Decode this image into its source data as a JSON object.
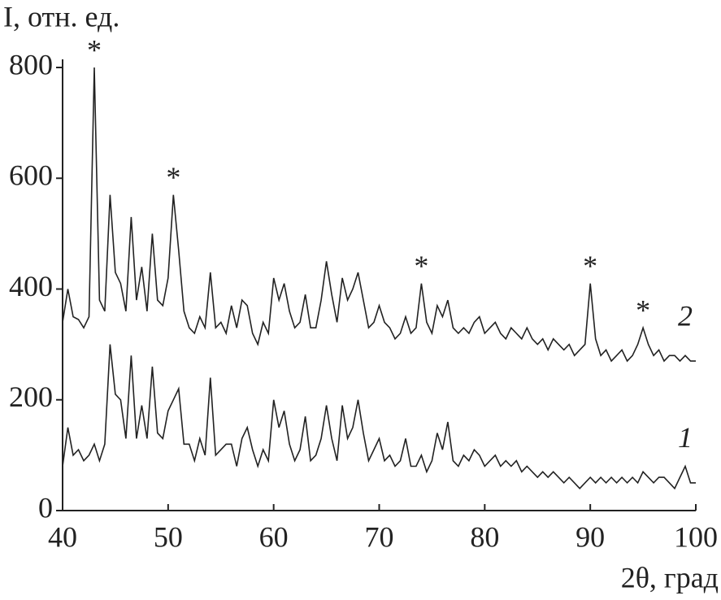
{
  "chart_data": {
    "type": "line",
    "y_label": "I, отн. ед.",
    "x_label": "2θ, град",
    "xlim": [
      40,
      100
    ],
    "xticks": [
      40,
      50,
      60,
      70,
      80,
      90,
      100
    ],
    "ylim": [
      0,
      800
    ],
    "yticks": [
      0,
      200,
      400,
      600,
      800
    ],
    "x": [
      40,
      40.5,
      41,
      41.5,
      42,
      42.5,
      43,
      43.5,
      44,
      44.5,
      45,
      45.5,
      46,
      46.5,
      47,
      47.5,
      48,
      48.5,
      49,
      49.5,
      50,
      50.5,
      51,
      51.5,
      52,
      52.5,
      53,
      53.5,
      54,
      54.5,
      55,
      55.5,
      56,
      56.5,
      57,
      57.5,
      58,
      58.5,
      59,
      59.5,
      60,
      60.5,
      61,
      61.5,
      62,
      62.5,
      63,
      63.5,
      64,
      64.5,
      65,
      65.5,
      66,
      66.5,
      67,
      67.5,
      68,
      68.5,
      69,
      69.5,
      70,
      70.5,
      71,
      71.5,
      72,
      72.5,
      73,
      73.5,
      74,
      74.5,
      75,
      75.5,
      76,
      76.5,
      77,
      77.5,
      78,
      78.5,
      79,
      79.5,
      80,
      80.5,
      81,
      81.5,
      82,
      82.5,
      83,
      83.5,
      84,
      84.5,
      85,
      85.5,
      86,
      86.5,
      87,
      87.5,
      88,
      88.5,
      89,
      89.5,
      90,
      90.5,
      91,
      91.5,
      92,
      92.5,
      93,
      93.5,
      94,
      94.5,
      95,
      95.5,
      96,
      96.5,
      97,
      97.5,
      98,
      98.5,
      99,
      99.5,
      100
    ],
    "series": [
      {
        "name": "1",
        "color": "#222222",
        "values": [
          80,
          150,
          100,
          110,
          90,
          100,
          120,
          90,
          120,
          300,
          210,
          200,
          130,
          280,
          130,
          190,
          130,
          260,
          140,
          130,
          180,
          200,
          220,
          120,
          120,
          90,
          130,
          100,
          240,
          100,
          110,
          120,
          120,
          80,
          130,
          150,
          110,
          80,
          110,
          90,
          200,
          150,
          180,
          120,
          90,
          110,
          170,
          90,
          100,
          130,
          190,
          130,
          90,
          190,
          130,
          150,
          200,
          140,
          90,
          110,
          130,
          90,
          100,
          80,
          90,
          130,
          80,
          80,
          100,
          70,
          90,
          140,
          110,
          160,
          90,
          80,
          100,
          90,
          110,
          100,
          80,
          90,
          100,
          80,
          90,
          80,
          90,
          70,
          80,
          70,
          60,
          70,
          60,
          70,
          60,
          50,
          60,
          50,
          40,
          50,
          60,
          50,
          60,
          50,
          60,
          50,
          60,
          50,
          60,
          50,
          70,
          60,
          50,
          60,
          60,
          50,
          40,
          60,
          80,
          50,
          50
        ]
      },
      {
        "name": "2",
        "color": "#222222",
        "values": [
          340,
          400,
          350,
          345,
          330,
          350,
          800,
          380,
          360,
          570,
          430,
          410,
          360,
          530,
          380,
          440,
          360,
          500,
          380,
          370,
          420,
          570,
          470,
          360,
          330,
          320,
          350,
          330,
          430,
          330,
          340,
          320,
          370,
          330,
          380,
          370,
          320,
          300,
          340,
          320,
          420,
          380,
          410,
          360,
          330,
          340,
          390,
          330,
          330,
          380,
          450,
          390,
          340,
          420,
          380,
          400,
          430,
          380,
          330,
          340,
          370,
          340,
          330,
          310,
          320,
          350,
          320,
          330,
          410,
          340,
          320,
          370,
          350,
          380,
          330,
          320,
          330,
          320,
          340,
          350,
          320,
          330,
          340,
          320,
          310,
          330,
          320,
          310,
          330,
          310,
          300,
          310,
          290,
          310,
          300,
          290,
          300,
          280,
          290,
          300,
          410,
          310,
          280,
          290,
          270,
          280,
          290,
          270,
          280,
          300,
          330,
          300,
          280,
          290,
          270,
          280,
          280,
          270,
          280,
          270,
          270
        ]
      }
    ],
    "annotations": [
      {
        "label": "*",
        "x": 43
      },
      {
        "label": "*",
        "x": 50.5
      },
      {
        "label": "*",
        "x": 74
      },
      {
        "label": "*",
        "x": 90
      },
      {
        "label": "*",
        "x": 95
      }
    ]
  }
}
